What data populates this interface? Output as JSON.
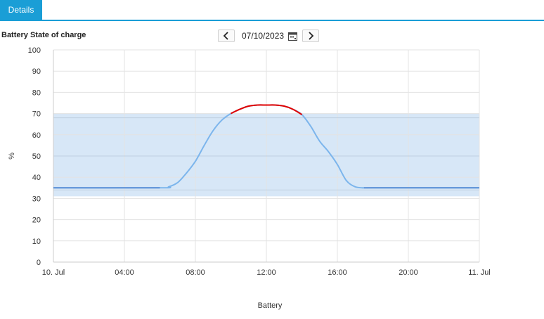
{
  "tabs": [
    {
      "label": "Details"
    }
  ],
  "chart_title": "Battery State of charge",
  "date_nav": {
    "date": "07/10/2023"
  },
  "colors": {
    "accent": "#1a9ed6",
    "line": "#7cb5ec",
    "line_dark": "#5b8fd6",
    "band": "#d7e7f7",
    "over": "#e00000",
    "grid": "#e3e3e3"
  },
  "chart_data": {
    "type": "line",
    "title": "Battery State of charge",
    "xlabel": "Battery",
    "ylabel": "%",
    "ylim": [
      0,
      100
    ],
    "yticks": [
      "0",
      "10",
      "20",
      "30",
      "40",
      "50",
      "60",
      "70",
      "80",
      "90",
      "100"
    ],
    "xticks": [
      {
        "hour": 0,
        "label": "10. Jul"
      },
      {
        "hour": 4,
        "label": "04:00"
      },
      {
        "hour": 8,
        "label": "08:00"
      },
      {
        "hour": 12,
        "label": "12:00"
      },
      {
        "hour": 16,
        "label": "16:00"
      },
      {
        "hour": 20,
        "label": "20:00"
      },
      {
        "hour": 24,
        "label": "11. Jul"
      }
    ],
    "band": {
      "from": 31,
      "to": 70
    },
    "plot_lines": [
      68,
      50,
      34
    ],
    "grid": true,
    "series": [
      {
        "x": [
          0,
          6,
          6.5,
          7,
          7.5,
          8,
          8.5,
          9,
          9.5,
          10,
          10.5,
          11,
          11.5,
          12,
          12.5,
          13,
          13.5,
          14,
          14.5,
          15,
          15.5,
          16,
          16.5,
          17,
          17.5,
          18,
          24
        ],
        "y": [
          35,
          35,
          35.5,
          37.5,
          42,
          47.5,
          55,
          62,
          67,
          70,
          72,
          73.5,
          74,
          74,
          74,
          73.5,
          72,
          69.5,
          64,
          57,
          52,
          46,
          38.5,
          35.5,
          35,
          35,
          35
        ]
      }
    ],
    "over_band_segment": {
      "x_from": 10.3,
      "x_to": 13.8
    }
  }
}
